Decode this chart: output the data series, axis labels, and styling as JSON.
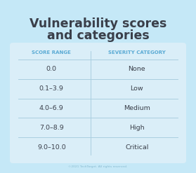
{
  "title_line1": "Vulnerability scores",
  "title_line2": "and categories",
  "title_color": "#3a3f4a",
  "background_color": "#c5e8f7",
  "table_bg_color": "#daeef8",
  "col1_header": "SCORE RANGE",
  "col2_header": "SEVERITY CATEGORY",
  "header_color": "#5aaad4",
  "rows": [
    [
      "0.0",
      "None"
    ],
    [
      "0.1–3.9",
      "Low"
    ],
    [
      "4.0–6.9",
      "Medium"
    ],
    [
      "7.0–8.9",
      "High"
    ],
    [
      "9.0–10.0",
      "Critical"
    ]
  ],
  "row_text_color": "#3a3f4a",
  "divider_color": "#aacfe0",
  "footer_text": "©2021 TechTarget. All rights reserved.",
  "footer_color": "#88bbd0"
}
